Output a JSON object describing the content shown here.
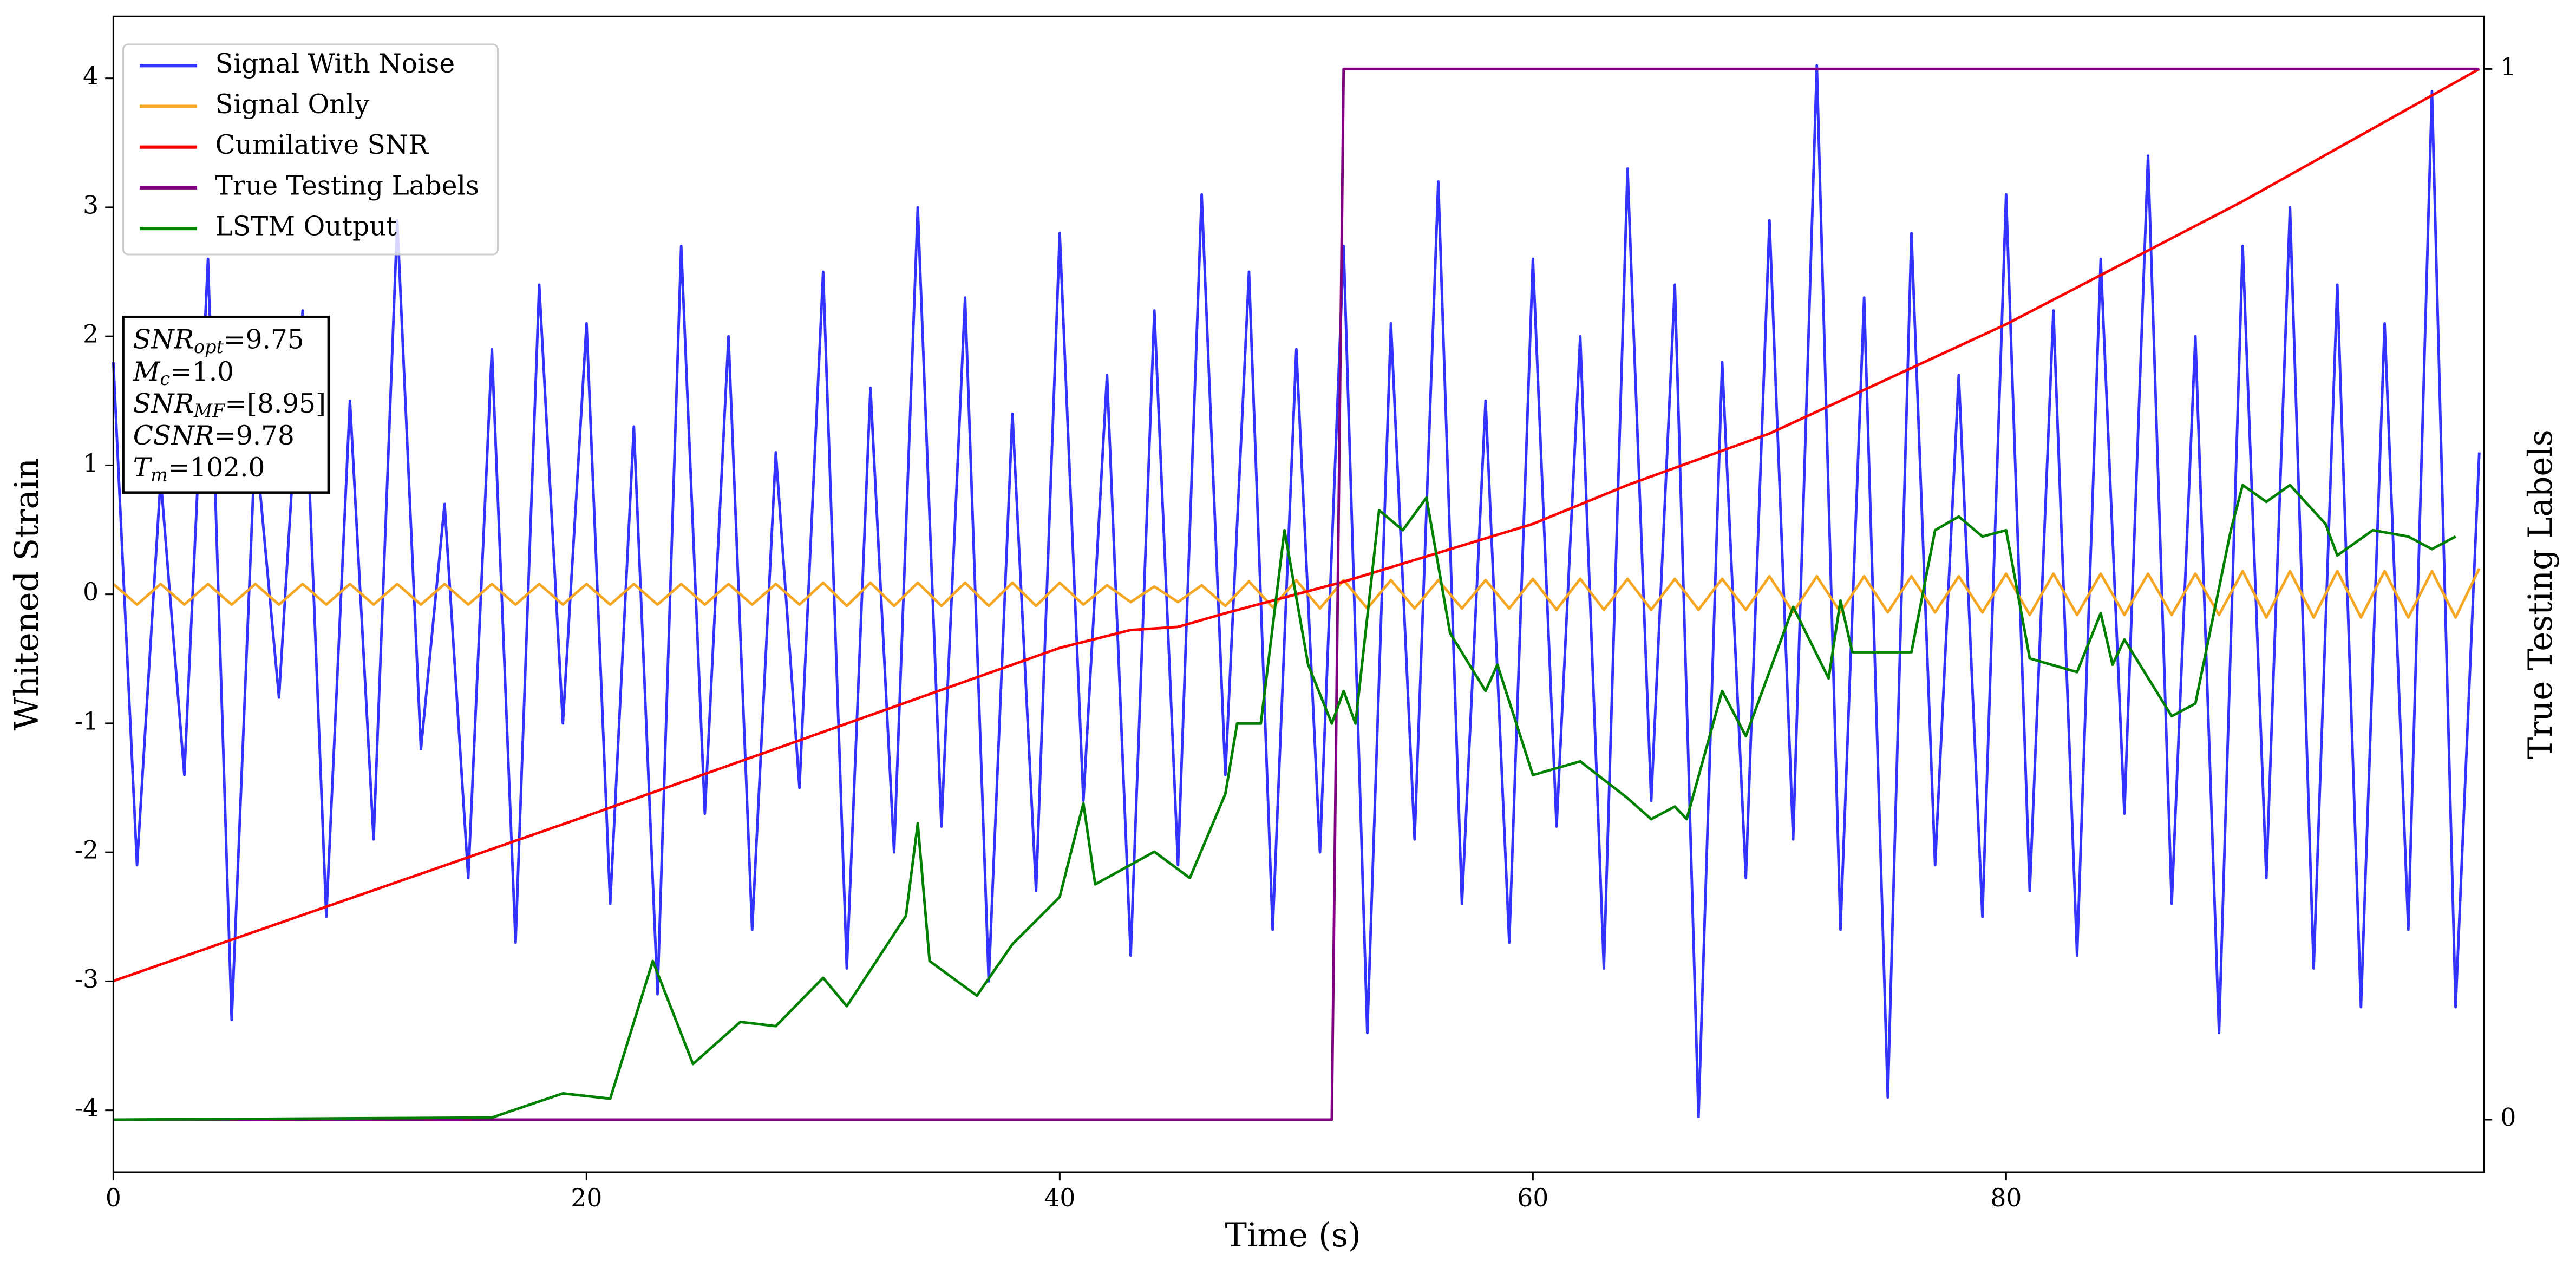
{
  "chart_data": {
    "type": "line",
    "xlabel": "Time (s)",
    "ylabel": "Whitened Strain",
    "y2label": "True Testing Labels",
    "xlim": [
      0,
      100.2
    ],
    "xticks": [
      0,
      20,
      40,
      60,
      80
    ],
    "ylim": [
      -4.48,
      4.48
    ],
    "yticks": [
      -4,
      -3,
      -2,
      -1,
      0,
      1,
      2,
      3,
      4
    ],
    "y2lim": [
      -0.05,
      1.05
    ],
    "y2ticks": [
      0,
      1
    ],
    "legend": "upper left",
    "x": [
      0,
      1,
      2,
      3,
      4,
      5,
      6,
      7,
      8,
      9,
      10,
      11,
      12,
      13,
      14,
      15,
      16,
      17,
      18,
      19,
      20,
      21,
      22,
      23,
      24,
      25,
      26,
      27,
      28,
      29,
      30,
      31,
      32,
      33,
      34,
      35,
      36,
      37,
      38,
      39,
      40,
      41,
      42,
      43,
      44,
      45,
      46,
      47,
      48,
      49,
      50,
      51,
      52,
      53,
      54,
      55,
      56,
      57,
      58,
      59,
      60,
      61,
      62,
      63,
      64,
      65,
      66,
      67,
      68,
      69,
      70,
      71,
      72,
      73,
      74,
      75,
      76,
      77,
      78,
      79,
      80,
      81,
      82,
      83,
      84,
      85,
      86,
      87,
      88,
      89,
      90,
      91,
      92,
      93,
      94,
      95,
      96,
      97,
      98,
      99,
      100
    ],
    "series": [
      {
        "name": "Signal With Noise",
        "color": "#3333ff",
        "axis": "y",
        "values": [
          1.8,
          -2.1,
          0.9,
          -1.4,
          2.6,
          -3.3,
          1.2,
          -0.8,
          2.2,
          -2.5,
          1.5,
          -1.9,
          2.9,
          -1.2,
          0.7,
          -2.2,
          1.9,
          -2.7,
          2.4,
          -1.0,
          2.1,
          -2.4,
          1.3,
          -3.1,
          2.7,
          -1.7,
          2.0,
          -2.6,
          1.1,
          -1.5,
          2.5,
          -2.9,
          1.6,
          -2.0,
          3.0,
          -1.8,
          2.3,
          -3.0,
          1.4,
          -2.3,
          2.8,
          -1.6,
          1.7,
          -2.8,
          2.2,
          -2.1,
          3.1,
          -1.4,
          2.5,
          -2.6,
          1.9,
          -2.0,
          2.7,
          -3.4,
          2.1,
          -1.9,
          3.2,
          -2.4,
          1.5,
          -2.7,
          2.6,
          -1.8,
          2.0,
          -2.9,
          3.3,
          -1.6,
          2.4,
          -4.05,
          1.8,
          -2.2,
          2.9,
          -1.9,
          4.1,
          -2.6,
          2.3,
          -3.9,
          2.8,
          -2.1,
          1.7,
          -2.5,
          3.1,
          -2.3,
          2.2,
          -2.8,
          2.6,
          -1.7,
          3.4,
          -2.4,
          2.0,
          -3.4,
          2.7,
          -2.2,
          3.0,
          -2.9,
          2.4,
          -3.2,
          2.1,
          -2.6,
          3.9,
          -3.2,
          1.1
        ]
      },
      {
        "name": "Signal Only",
        "color": "#f5a623",
        "axis": "y",
        "values": [
          0.08,
          -0.08,
          0.08,
          -0.08,
          0.08,
          -0.08,
          0.08,
          -0.08,
          0.08,
          -0.08,
          0.08,
          -0.08,
          0.08,
          -0.08,
          0.08,
          -0.08,
          0.08,
          -0.08,
          0.08,
          -0.08,
          0.08,
          -0.08,
          0.08,
          -0.08,
          0.08,
          -0.08,
          0.08,
          -0.08,
          0.08,
          -0.08,
          0.09,
          -0.09,
          0.09,
          -0.09,
          0.09,
          -0.09,
          0.09,
          -0.09,
          0.09,
          -0.09,
          0.09,
          -0.08,
          0.07,
          -0.06,
          0.06,
          -0.06,
          0.07,
          -0.09,
          0.1,
          -0.1,
          0.11,
          -0.11,
          0.11,
          -0.11,
          0.11,
          -0.11,
          0.11,
          -0.11,
          0.11,
          -0.11,
          0.12,
          -0.12,
          0.12,
          -0.12,
          0.12,
          -0.12,
          0.12,
          -0.12,
          0.12,
          -0.12,
          0.14,
          -0.14,
          0.14,
          -0.14,
          0.14,
          -0.14,
          0.14,
          -0.14,
          0.14,
          -0.14,
          0.16,
          -0.16,
          0.16,
          -0.16,
          0.16,
          -0.16,
          0.16,
          -0.16,
          0.16,
          -0.16,
          0.18,
          -0.18,
          0.18,
          -0.18,
          0.18,
          -0.18,
          0.18,
          -0.18,
          0.18,
          -0.18,
          0.2
        ]
      },
      {
        "name": "Cumilative SNR",
        "color": "red",
        "axis": "y2",
        "x": [
          0,
          20,
          40,
          43,
          45,
          47,
          52,
          60,
          64,
          70,
          80,
          90,
          100
        ],
        "values": [
          0.132,
          0.289,
          0.449,
          0.466,
          0.469,
          0.482,
          0.512,
          0.567,
          0.604,
          0.653,
          0.757,
          0.874,
          1.0
        ]
      },
      {
        "name": "True Testing Labels",
        "color": "purple",
        "axis": "y2",
        "x": [
          0,
          51.5,
          52,
          100
        ],
        "values": [
          0,
          0,
          1,
          1
        ]
      },
      {
        "name": "LSTM Output",
        "color": "green",
        "axis": "y2",
        "x": [
          0,
          16,
          19,
          21,
          22.8,
          24.5,
          26.5,
          28,
          30,
          31,
          33.5,
          34,
          34.5,
          36.5,
          38,
          40,
          41,
          41.5,
          44,
          45.5,
          47,
          47.5,
          48.5,
          49.5,
          50.5,
          51.5,
          52,
          52.5,
          53.5,
          54.5,
          55.5,
          56.5,
          58,
          58.5,
          60,
          62,
          64,
          65,
          66,
          66.5,
          68,
          69,
          71,
          72.5,
          73,
          73.5,
          76,
          77,
          78,
          79,
          80,
          81,
          83,
          84,
          84.5,
          85,
          87,
          88,
          89.5,
          90,
          91,
          92,
          93.5,
          94,
          95.5,
          97,
          98,
          99
        ],
        "values": [
          0,
          0.002,
          0.025,
          0.02,
          0.151,
          0.053,
          0.093,
          0.089,
          0.135,
          0.108,
          0.194,
          0.282,
          0.151,
          0.118,
          0.167,
          0.212,
          0.301,
          0.224,
          0.255,
          0.23,
          0.31,
          0.377,
          0.377,
          0.561,
          0.433,
          0.377,
          0.408,
          0.377,
          0.58,
          0.561,
          0.592,
          0.463,
          0.408,
          0.433,
          0.328,
          0.341,
          0.306,
          0.286,
          0.298,
          0.286,
          0.408,
          0.365,
          0.488,
          0.42,
          0.494,
          0.445,
          0.445,
          0.561,
          0.574,
          0.555,
          0.561,
          0.439,
          0.426,
          0.482,
          0.433,
          0.457,
          0.384,
          0.396,
          0.561,
          0.604,
          0.588,
          0.604,
          0.567,
          0.537,
          0.561,
          0.555,
          0.543,
          0.555
        ]
      }
    ],
    "annotation": [
      {
        "name": "SNR",
        "sub": "opt",
        "value": "=9.75"
      },
      {
        "name": "M",
        "sub": "c",
        "value": "=1.0"
      },
      {
        "name": "SNR",
        "sub": "MF",
        "value": "=[8.95]"
      },
      {
        "name": "CSNR",
        "value": "=9.78"
      },
      {
        "name": "T",
        "sub": "m",
        "value": "=102.0"
      }
    ]
  }
}
